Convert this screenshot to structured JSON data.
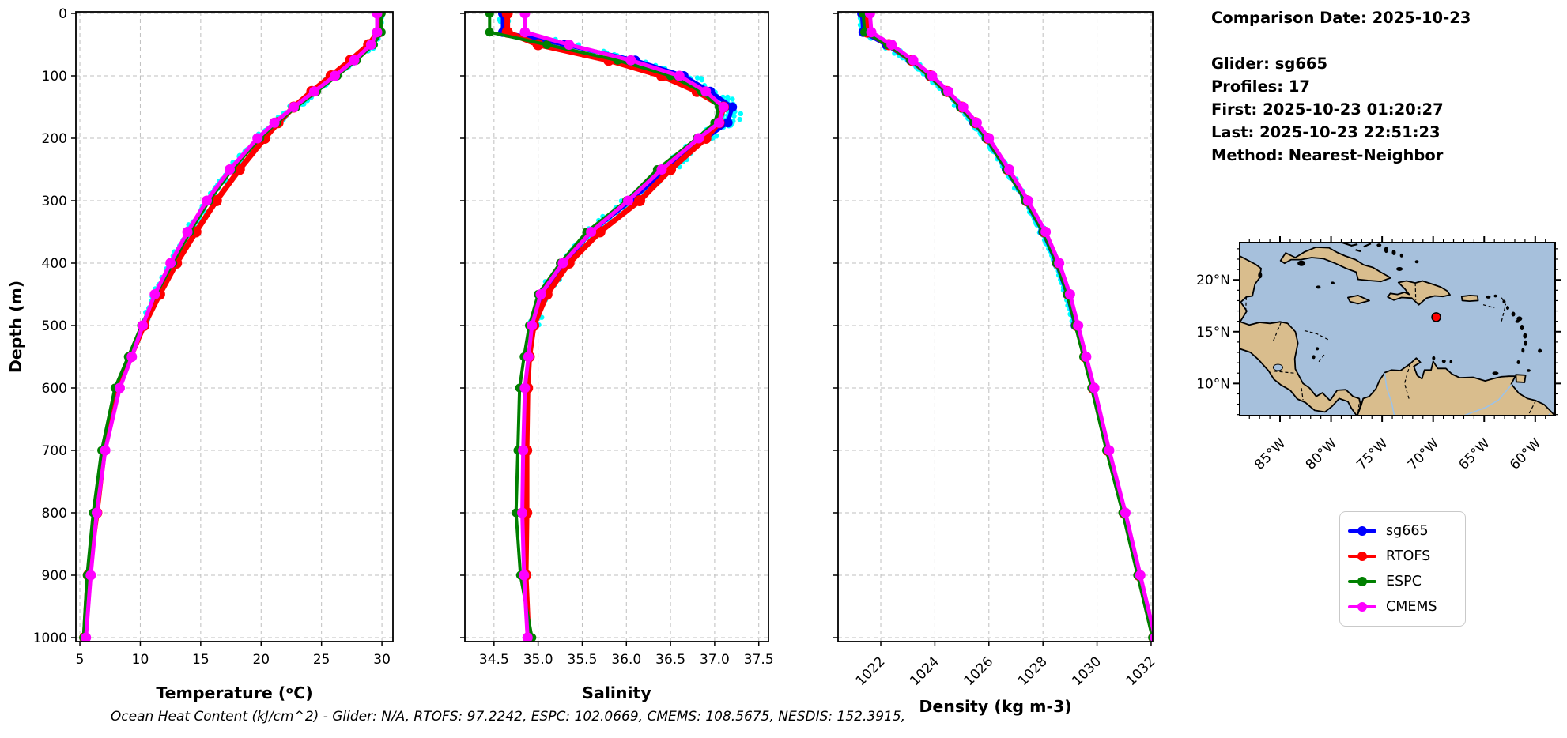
{
  "figure": {
    "background": "#ffffff"
  },
  "info_panel": {
    "lines": [
      "Comparison Date: 2025-10-23",
      "",
      "Glider: sg665",
      "Profiles: 17",
      "First: 2025-10-23 01:20:27",
      "Last: 2025-10-23 22:51:23",
      "Method: Nearest-Neighbor"
    ]
  },
  "caption": {
    "text": "Ocean Heat Content (kJ/cm^2) - Glider: N/A,  RTOFS: 97.2242,  ESPC: 102.0669,  CMEMS: 108.5675,  NESDIS: 152.3915,"
  },
  "legend": {
    "entries": [
      {
        "label": "sg665",
        "color": "#0000ff"
      },
      {
        "label": "RTOFS",
        "color": "#ff0000"
      },
      {
        "label": "ESPC",
        "color": "#008000"
      },
      {
        "label": "CMEMS",
        "color": "#ff00ff"
      }
    ]
  },
  "map": {
    "extent": {
      "lon_min": -88.95,
      "lon_max": -58.05,
      "lat_min": 6.9,
      "lat_max": 23.6
    },
    "lon_ticks": {
      "values": [
        -85,
        -80,
        -75,
        -70,
        -65,
        -60
      ],
      "labels": [
        "85°W",
        "80°W",
        "75°W",
        "70°W",
        "65°W",
        "60°W"
      ]
    },
    "lat_ticks": {
      "values": [
        20,
        15,
        10
      ],
      "labels": [
        "20°N",
        "15°N",
        "10°N"
      ]
    },
    "marker": {
      "lon": -69.7,
      "lat": 16.4,
      "color": "#ff0000"
    },
    "colors": {
      "ocean": "#a6c0dc",
      "land": "#d9bd8d",
      "coast": "#000000",
      "river": "#9cc2e8"
    }
  },
  "chart_data": [
    {
      "type": "line",
      "id": "temperature",
      "xlabel": "Temperature (ᵒC)",
      "ylabel": "Depth (m)",
      "xlim": [
        4.67,
        30.91
      ],
      "ylim": [
        0,
        1000
      ],
      "y_inverted": true,
      "grid": true,
      "xticks": {
        "values": [
          5,
          10,
          15,
          20,
          25,
          30
        ],
        "labels": [
          "5",
          "10",
          "15",
          "20",
          "25",
          "30"
        ],
        "rotated": false
      },
      "yticks": {
        "values": [
          0,
          100,
          200,
          300,
          400,
          500,
          600,
          700,
          800,
          900,
          1000
        ],
        "labels": [
          "0",
          "100",
          "200",
          "300",
          "400",
          "500",
          "600",
          "700",
          "800",
          "900",
          "1000"
        ],
        "show_labels": true
      },
      "scatter": {
        "name": "glider raw profiles",
        "color": "#00ffff",
        "amplitude": 0.3,
        "max_depth": 500
      },
      "series": [
        {
          "name": "sg665",
          "color": "#0000ff",
          "depths": [
            0,
            30,
            50,
            75,
            100,
            125,
            150,
            175,
            200,
            250,
            300,
            350,
            400,
            450,
            500
          ],
          "values": [
            29.85,
            29.85,
            29.2,
            27.8,
            26.2,
            24.5,
            22.8,
            21.2,
            19.8,
            17.5,
            15.6,
            14.0,
            12.6,
            11.3,
            10.2
          ]
        },
        {
          "name": "RTOFS",
          "color": "#ff0000",
          "depths": [
            0,
            30,
            50,
            75,
            100,
            125,
            150,
            175,
            200,
            250,
            300,
            350,
            400,
            450,
            500,
            550,
            600,
            700,
            800,
            900,
            1000
          ],
          "values": [
            29.7,
            29.7,
            28.9,
            27.4,
            25.8,
            24.2,
            22.7,
            21.4,
            20.3,
            18.2,
            16.3,
            14.6,
            13.0,
            11.6,
            10.3,
            9.2,
            8.2,
            7.0,
            6.4,
            5.7,
            5.4
          ]
        },
        {
          "name": "ESPC",
          "color": "#008000",
          "depths": [
            0,
            30,
            50,
            75,
            100,
            125,
            150,
            175,
            200,
            250,
            300,
            350,
            400,
            450,
            500,
            550,
            600,
            700,
            800,
            900,
            1000
          ],
          "values": [
            29.95,
            29.95,
            29.3,
            27.9,
            26.3,
            24.6,
            22.9,
            21.3,
            19.9,
            17.6,
            15.7,
            14.1,
            12.7,
            11.3,
            10.1,
            9.0,
            7.9,
            6.8,
            6.1,
            5.6,
            5.3
          ]
        },
        {
          "name": "CMEMS",
          "color": "#ff00ff",
          "depths": [
            0,
            30,
            50,
            75,
            100,
            125,
            150,
            175,
            200,
            250,
            300,
            350,
            400,
            450,
            500,
            550,
            600,
            700,
            800,
            900,
            1000
          ],
          "values": [
            29.6,
            29.6,
            29.1,
            27.7,
            26.1,
            24.4,
            22.7,
            21.1,
            19.7,
            17.4,
            15.5,
            13.9,
            12.5,
            11.2,
            10.2,
            9.3,
            8.3,
            7.1,
            6.4,
            5.9,
            5.5
          ]
        }
      ]
    },
    {
      "type": "line",
      "id": "salinity",
      "xlabel": "Salinity",
      "ylabel": "",
      "xlim": [
        34.17,
        37.61
      ],
      "ylim": [
        0,
        1000
      ],
      "y_inverted": true,
      "grid": true,
      "xticks": {
        "values": [
          34.5,
          35.0,
          35.5,
          36.0,
          36.5,
          37.0,
          37.5
        ],
        "labels": [
          "34.5",
          "35.0",
          "35.5",
          "36.0",
          "36.5",
          "37.0",
          "37.5"
        ],
        "rotated": false
      },
      "yticks": {
        "values": [
          0,
          100,
          200,
          300,
          400,
          500,
          600,
          700,
          800,
          900,
          1000
        ],
        "labels": [
          "0",
          "100",
          "200",
          "300",
          "400",
          "500",
          "600",
          "700",
          "800",
          "900",
          "1000"
        ],
        "show_labels": false
      },
      "scatter": {
        "name": "glider raw profiles",
        "color": "#00ffff",
        "amplitude": 0.07,
        "max_depth": 500,
        "bulge_depth": 160
      },
      "series": [
        {
          "name": "sg665",
          "color": "#0000ff",
          "depths": [
            0,
            30,
            50,
            75,
            100,
            125,
            150,
            175,
            200,
            250,
            300,
            350,
            400,
            450,
            500
          ],
          "values": [
            34.6,
            34.6,
            35.3,
            36.1,
            36.65,
            36.95,
            37.2,
            37.15,
            36.9,
            36.45,
            36.05,
            35.6,
            35.3,
            35.05,
            34.95
          ]
        },
        {
          "name": "RTOFS",
          "color": "#ff0000",
          "depths": [
            0,
            30,
            50,
            75,
            100,
            125,
            150,
            175,
            200,
            250,
            300,
            350,
            400,
            450,
            500,
            550,
            600,
            700,
            800,
            900,
            1000
          ],
          "values": [
            34.65,
            34.65,
            35.0,
            35.8,
            36.4,
            36.8,
            37.1,
            37.05,
            36.9,
            36.5,
            36.15,
            35.7,
            35.35,
            35.1,
            34.95,
            34.9,
            34.88,
            34.87,
            34.87,
            34.86,
            34.89
          ]
        },
        {
          "name": "ESPC",
          "color": "#008000",
          "depths": [
            0,
            30,
            50,
            75,
            100,
            125,
            150,
            175,
            200,
            250,
            300,
            350,
            400,
            450,
            500,
            550,
            600,
            700,
            800,
            900,
            1000
          ],
          "values": [
            34.45,
            34.45,
            35.1,
            35.9,
            36.5,
            36.85,
            37.05,
            37.0,
            36.8,
            36.35,
            36.0,
            35.55,
            35.25,
            35.0,
            34.9,
            34.84,
            34.79,
            34.77,
            34.75,
            34.8,
            34.93
          ]
        },
        {
          "name": "CMEMS",
          "color": "#ff00ff",
          "depths": [
            0,
            30,
            50,
            75,
            100,
            125,
            150,
            175,
            200,
            250,
            300,
            350,
            400,
            450,
            500,
            550,
            600,
            700,
            800,
            900,
            1000
          ],
          "values": [
            34.85,
            34.85,
            35.35,
            36.05,
            36.6,
            36.9,
            37.1,
            37.05,
            36.82,
            36.4,
            36.02,
            35.6,
            35.28,
            35.03,
            34.93,
            34.89,
            34.85,
            34.83,
            34.82,
            34.84,
            34.88
          ]
        }
      ]
    },
    {
      "type": "line",
      "id": "density",
      "xlabel": "Density (kg m-3)",
      "ylabel": "",
      "xlim": [
        1020.42,
        1032.06
      ],
      "ylim": [
        0,
        1000
      ],
      "y_inverted": true,
      "grid": true,
      "xticks": {
        "values": [
          1022,
          1024,
          1026,
          1028,
          1030,
          1032
        ],
        "labels": [
          "1022",
          "1024",
          "1026",
          "1028",
          "1030",
          "1032"
        ],
        "rotated": true
      },
      "yticks": {
        "values": [
          0,
          100,
          200,
          300,
          400,
          500,
          600,
          700,
          800,
          900,
          1000
        ],
        "labels": [
          "0",
          "100",
          "200",
          "300",
          "400",
          "500",
          "600",
          "700",
          "800",
          "900",
          "1000"
        ],
        "show_labels": false
      },
      "scatter": {
        "name": "glider raw profiles",
        "color": "#00ffff",
        "amplitude": 0.1,
        "max_depth": 500
      },
      "series": [
        {
          "name": "sg665",
          "color": "#0000ff",
          "depths": [
            0,
            30,
            50,
            75,
            100,
            125,
            150,
            175,
            200,
            250,
            300,
            350,
            400,
            450,
            500
          ],
          "values": [
            1021.3,
            1021.35,
            1022.2,
            1023.1,
            1023.8,
            1024.4,
            1024.95,
            1025.45,
            1025.9,
            1026.65,
            1027.35,
            1028.0,
            1028.5,
            1028.9,
            1029.2
          ]
        },
        {
          "name": "RTOFS",
          "color": "#ff0000",
          "depths": [
            0,
            30,
            50,
            75,
            100,
            125,
            150,
            175,
            200,
            250,
            300,
            350,
            400,
            450,
            500,
            550,
            600,
            700,
            800,
            900,
            1000
          ],
          "values": [
            1021.45,
            1021.5,
            1022.3,
            1023.15,
            1023.85,
            1024.45,
            1025.0,
            1025.5,
            1025.95,
            1026.7,
            1027.4,
            1028.05,
            1028.55,
            1028.95,
            1029.25,
            1029.55,
            1029.85,
            1030.4,
            1031.0,
            1031.55,
            1032.1
          ]
        },
        {
          "name": "ESPC",
          "color": "#008000",
          "depths": [
            0,
            30,
            50,
            75,
            100,
            125,
            150,
            175,
            200,
            250,
            300,
            350,
            400,
            450,
            500,
            550,
            600,
            700,
            800,
            900,
            1000
          ],
          "values": [
            1021.35,
            1021.4,
            1022.25,
            1023.1,
            1023.8,
            1024.4,
            1024.95,
            1025.45,
            1025.9,
            1026.65,
            1027.35,
            1028.0,
            1028.5,
            1028.9,
            1029.2,
            1029.5,
            1029.8,
            1030.35,
            1030.95,
            1031.5,
            1032.05
          ]
        },
        {
          "name": "CMEMS",
          "color": "#ff00ff",
          "depths": [
            0,
            30,
            50,
            75,
            100,
            125,
            150,
            175,
            200,
            250,
            300,
            350,
            400,
            450,
            500,
            550,
            600,
            700,
            800,
            900,
            1000
          ],
          "values": [
            1021.6,
            1021.65,
            1022.4,
            1023.2,
            1023.9,
            1024.5,
            1025.05,
            1025.55,
            1026.0,
            1026.75,
            1027.45,
            1028.1,
            1028.6,
            1029.0,
            1029.3,
            1029.6,
            1029.9,
            1030.45,
            1031.05,
            1031.6,
            1032.15
          ]
        }
      ]
    }
  ]
}
